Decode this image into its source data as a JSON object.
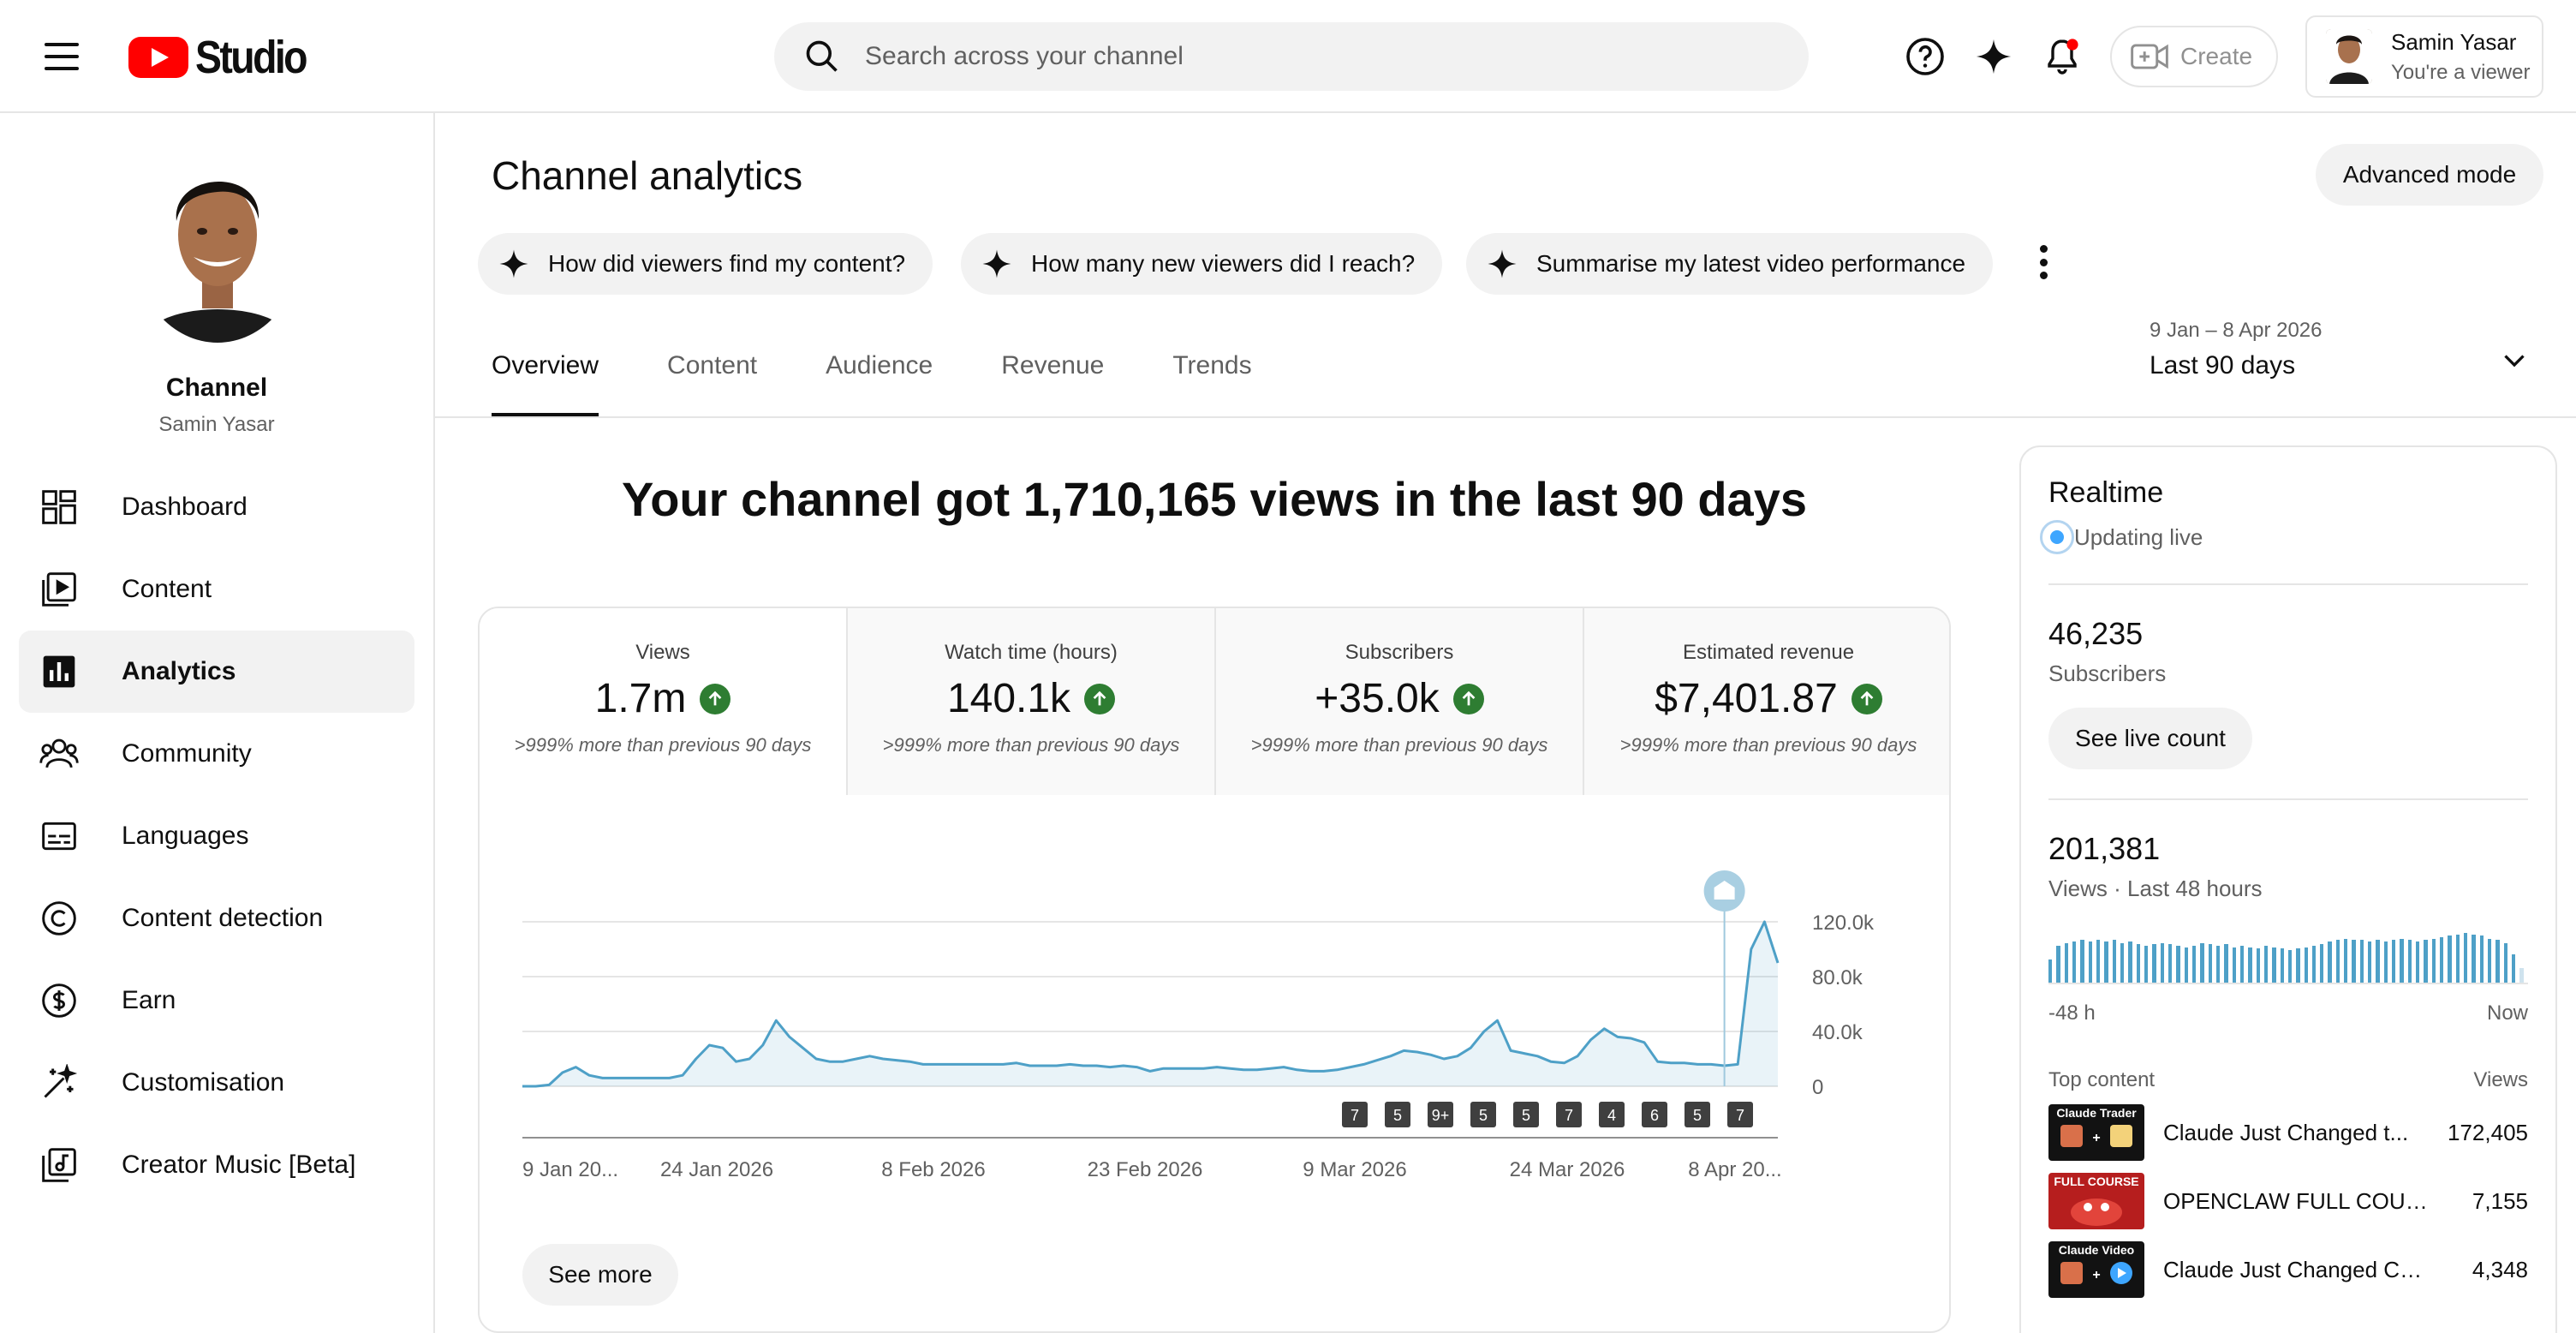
{
  "header": {
    "logo_text": "Studio",
    "search_placeholder": "Search across your channel",
    "create_label": "Create",
    "account_name": "Samin Yasar",
    "account_role": "You're a viewer"
  },
  "sidebar": {
    "channel_title": "Channel",
    "channel_owner": "Samin Yasar",
    "items": [
      {
        "label": "Dashboard",
        "icon": "dashboard-icon"
      },
      {
        "label": "Content",
        "icon": "content-icon"
      },
      {
        "label": "Analytics",
        "icon": "analytics-icon",
        "active": true
      },
      {
        "label": "Community",
        "icon": "community-icon"
      },
      {
        "label": "Languages",
        "icon": "subtitles-icon"
      },
      {
        "label": "Content detection",
        "icon": "copyright-icon"
      },
      {
        "label": "Earn",
        "icon": "dollar-icon"
      },
      {
        "label": "Customisation",
        "icon": "magic-wand-icon"
      },
      {
        "label": "Creator Music [Beta]",
        "icon": "music-library-icon"
      }
    ]
  },
  "main": {
    "page_title": "Channel analytics",
    "advanced_mode": "Advanced mode",
    "chips": [
      "How did viewers find my content?",
      "How many new viewers did I reach?",
      "Summarise my latest video performance"
    ],
    "tabs": [
      "Overview",
      "Content",
      "Audience",
      "Revenue",
      "Trends"
    ],
    "active_tab": "Overview",
    "date_range": {
      "dates": "9 Jan – 8 Apr 2026",
      "label": "Last 90 days"
    },
    "headline": "Your channel got 1,710,165 views in the last 90 days",
    "metrics": [
      {
        "label": "Views",
        "value": "1.7m",
        "note": ">999% more than previous 90 days"
      },
      {
        "label": "Watch time (hours)",
        "value": "140.1k",
        "note": ">999% more than previous 90 days"
      },
      {
        "label": "Subscribers",
        "value": "+35.0k",
        "note": ">999% more than previous 90 days"
      },
      {
        "label": "Estimated revenue",
        "value": "$7,401.87",
        "note": ">999% more than previous 90 days"
      }
    ],
    "see_more": "See more"
  },
  "chart_data": {
    "type": "area",
    "series": [
      {
        "values": [
          0,
          0,
          1,
          10,
          14,
          8,
          6,
          6,
          6,
          6,
          6,
          6,
          8,
          20,
          30,
          28,
          18,
          20,
          30,
          48,
          36,
          28,
          20,
          18,
          18,
          20,
          22,
          20,
          19,
          18,
          16,
          16,
          16,
          16,
          16,
          16,
          16,
          17,
          15,
          15,
          15,
          16,
          15,
          15,
          14,
          15,
          14,
          11,
          13,
          13,
          13,
          13,
          14,
          13,
          12,
          12,
          13,
          14,
          12,
          11,
          11,
          12,
          14,
          16,
          19,
          22,
          26,
          25,
          23,
          20,
          22,
          28,
          40,
          48,
          26,
          24,
          22,
          18,
          17,
          22,
          34,
          42,
          36,
          35,
          32,
          18,
          17,
          17,
          16,
          16,
          15,
          16,
          100,
          120,
          90
        ]
      }
    ],
    "x_tick_labels": [
      "9 Jan 20...",
      "24 Jan 2026",
      "8 Feb 2026",
      "23 Feb 2026",
      "9 Mar 2026",
      "24 Mar 2026",
      "8 Apr 20..."
    ],
    "y_tick_labels": [
      "120.0k",
      "80.0k",
      "40.0k",
      "0"
    ],
    "ylim": [
      0,
      120000
    ],
    "grid": true,
    "color": "#4ea0c7",
    "upload_markers": [
      "7",
      "5",
      "9+",
      "5",
      "5",
      "7",
      "4",
      "6",
      "5",
      "7"
    ]
  },
  "realtime": {
    "title": "Realtime",
    "status": "Updating live",
    "subscribers_value": "46,235",
    "subscribers_label": "Subscribers",
    "live_count_btn": "See live count",
    "views_value": "201,381",
    "views_label": "Views · Last 48 hours",
    "spark_start": "-48 h",
    "spark_end": "Now",
    "spark_values": [
      16,
      26,
      28,
      29,
      30,
      29,
      30,
      29,
      30,
      28,
      29,
      27,
      26,
      27,
      28,
      27,
      26,
      25,
      26,
      28,
      27,
      26,
      27,
      25,
      26,
      25,
      24,
      26,
      25,
      24,
      23,
      24,
      25,
      26,
      27,
      29,
      30,
      31,
      30,
      30,
      29,
      30,
      29,
      30,
      31,
      30,
      29,
      30,
      31,
      32,
      33,
      34,
      35,
      34,
      33,
      31,
      30,
      28,
      20,
      10
    ],
    "top_content_label": "Top content",
    "views_col_label": "Views",
    "top_content": [
      {
        "title": "Claude Just Changed t...",
        "views": "172,405",
        "thumb_text": "Claude Trader"
      },
      {
        "title": "OPENCLAW FULL COURS...",
        "views": "7,155",
        "thumb_text": "FULL COURSE"
      },
      {
        "title": "Claude Just Changed Co...",
        "views": "4,348",
        "thumb_text": "Claude Video"
      }
    ]
  }
}
